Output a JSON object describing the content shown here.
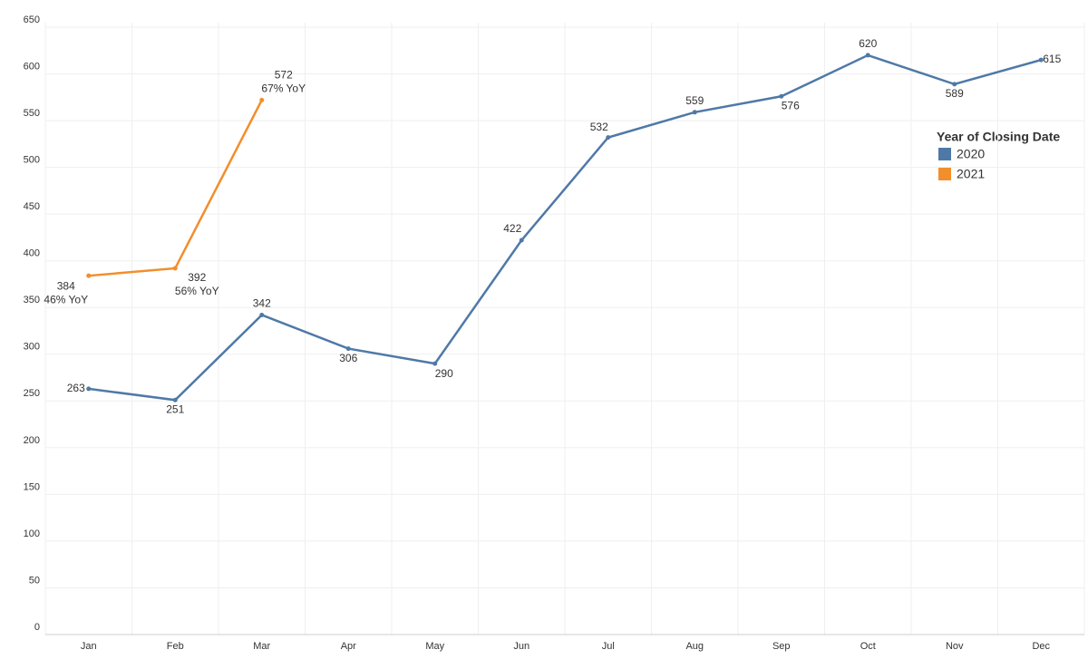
{
  "chart_data": {
    "type": "line",
    "categories": [
      "Jan",
      "Feb",
      "Mar",
      "Apr",
      "May",
      "Jun",
      "Jul",
      "Aug",
      "Sep",
      "Oct",
      "Nov",
      "Dec"
    ],
    "series": [
      {
        "name": "2020",
        "color": "#4e79a7",
        "values": [
          263,
          251,
          342,
          306,
          290,
          422,
          532,
          559,
          576,
          620,
          589,
          615
        ]
      },
      {
        "name": "2021",
        "color": "#f28e2b",
        "values": [
          384,
          392,
          572,
          null,
          null,
          null,
          null,
          null,
          null,
          null,
          null,
          null
        ],
        "annotations": [
          "46% YoY",
          "56% YoY",
          "67% YoY",
          null,
          null,
          null,
          null,
          null,
          null,
          null,
          null,
          null
        ]
      }
    ],
    "legend_title": "Year of Closing Date",
    "legend_position": "right",
    "ylim": [
      0,
      650
    ],
    "yticks": [
      0,
      50,
      100,
      150,
      200,
      250,
      300,
      350,
      400,
      450,
      500,
      550,
      600,
      650
    ],
    "grid": true
  }
}
